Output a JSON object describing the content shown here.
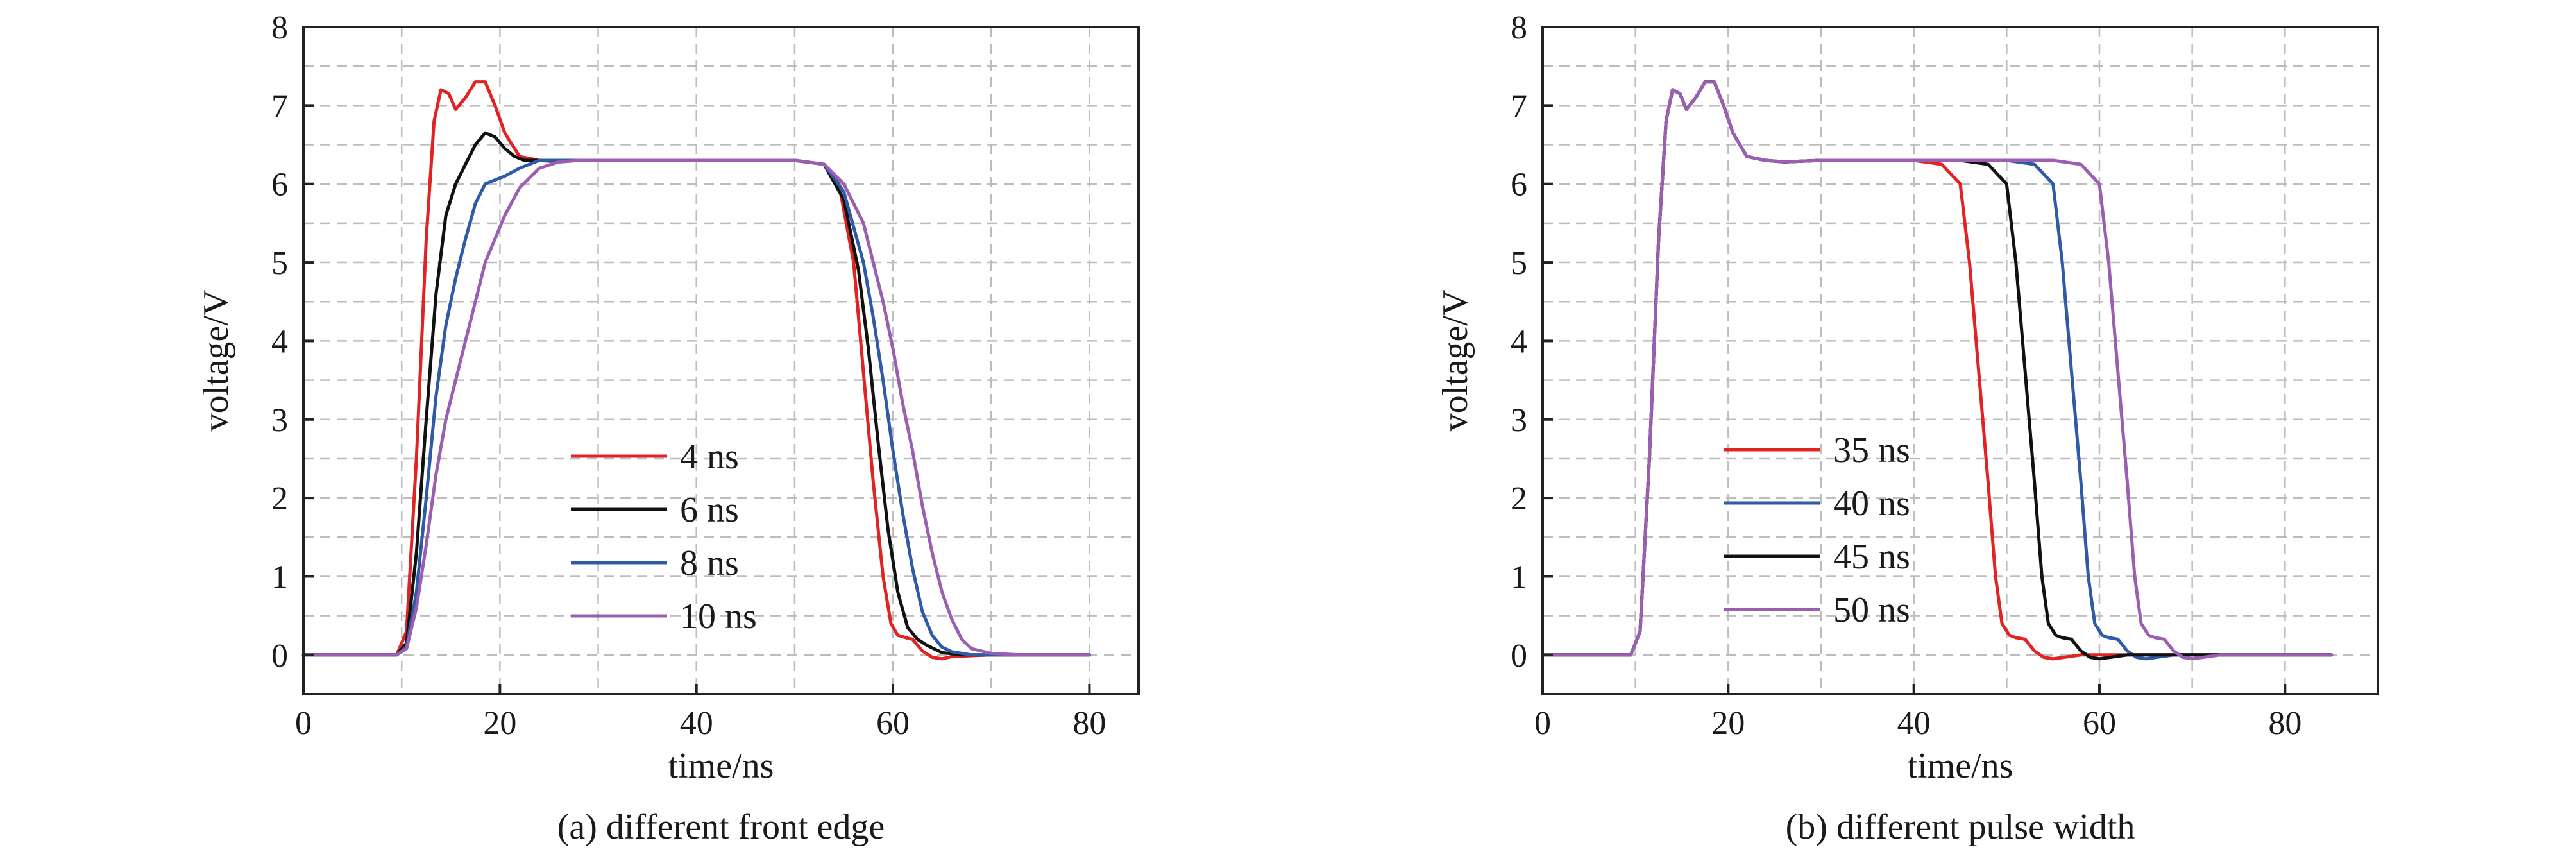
{
  "colors": {
    "red": "#e02424",
    "black": "#111111",
    "blue": "#2f5aa8",
    "purple": "#9a5fb0"
  },
  "chart_data": [
    {
      "type": "line",
      "title": "",
      "caption": "(a) different front edge",
      "xlabel": "time/ns",
      "ylabel": "voltage/V",
      "xlim": [
        0,
        85
      ],
      "ylim": [
        -0.5,
        8
      ],
      "xticks": [
        "0",
        "20",
        "40",
        "60",
        "80"
      ],
      "yticks": [
        "0",
        "1",
        "2",
        "3",
        "4",
        "5",
        "6",
        "7",
        "8"
      ],
      "grid": true,
      "legend_position": "center",
      "series": [
        {
          "name": "4 ns",
          "color": "#e02424",
          "x": [
            0,
            9.5,
            10.5,
            11.5,
            12.5,
            13.3,
            14,
            14.8,
            15.5,
            16.5,
            17.5,
            18.5,
            19.5,
            20.5,
            22,
            24,
            26,
            28,
            30,
            40,
            50,
            53,
            54.5,
            56,
            57,
            58,
            59,
            59.8,
            60.5,
            61.3,
            62,
            63,
            64,
            65,
            66,
            70,
            80
          ],
          "y": [
            0,
            0,
            0.3,
            2.5,
            5.3,
            6.8,
            7.2,
            7.15,
            6.95,
            7.1,
            7.3,
            7.3,
            7.0,
            6.65,
            6.35,
            6.3,
            6.28,
            6.3,
            6.3,
            6.3,
            6.3,
            6.25,
            6.0,
            5.0,
            3.6,
            2.2,
            1.0,
            0.4,
            0.25,
            0.22,
            0.2,
            0.05,
            -0.03,
            -0.05,
            -0.02,
            0,
            0
          ]
        },
        {
          "name": "6 ns",
          "color": "#111111",
          "x": [
            0,
            9.5,
            10.5,
            11.5,
            12.5,
            13.5,
            14.5,
            15.5,
            16.5,
            17.5,
            18.5,
            19.5,
            20.5,
            21.5,
            22.5,
            24,
            26,
            28,
            30,
            40,
            50,
            53,
            55,
            56.5,
            57.5,
            58.5,
            59.5,
            60.5,
            61.5,
            62.5,
            63.5,
            65,
            67,
            70,
            80
          ],
          "y": [
            0,
            0,
            0.15,
            1.3,
            3.0,
            4.6,
            5.6,
            6.0,
            6.25,
            6.5,
            6.65,
            6.6,
            6.45,
            6.35,
            6.3,
            6.3,
            6.3,
            6.3,
            6.3,
            6.3,
            6.3,
            6.25,
            5.8,
            4.9,
            3.9,
            2.7,
            1.6,
            0.8,
            0.35,
            0.2,
            0.12,
            0.03,
            0,
            0,
            0
          ]
        },
        {
          "name": "8 ns",
          "color": "#2f5aa8",
          "x": [
            0,
            9.5,
            10.5,
            11.5,
            12.5,
            13.5,
            14.5,
            15.5,
            16.5,
            17.5,
            18.5,
            19.5,
            20.5,
            22,
            24,
            26,
            28,
            30,
            40,
            50,
            53,
            55,
            57,
            58,
            59,
            60,
            61,
            62,
            63,
            64,
            65,
            66,
            68,
            70,
            80
          ],
          "y": [
            0,
            0,
            0.1,
            0.8,
            2.0,
            3.3,
            4.2,
            4.8,
            5.3,
            5.75,
            6.0,
            6.05,
            6.1,
            6.2,
            6.3,
            6.3,
            6.3,
            6.3,
            6.3,
            6.3,
            6.25,
            5.9,
            5.0,
            4.3,
            3.5,
            2.6,
            1.8,
            1.1,
            0.55,
            0.25,
            0.1,
            0.04,
            0,
            0,
            0
          ]
        },
        {
          "name": "10 ns",
          "color": "#9a5fb0",
          "x": [
            0,
            9.5,
            10.5,
            11.5,
            12.5,
            13.5,
            14.5,
            15.5,
            16.5,
            17.5,
            18.5,
            19.5,
            20.5,
            22,
            24,
            26,
            28,
            30,
            40,
            50,
            53,
            55,
            57,
            58,
            59,
            60,
            61,
            62,
            63,
            64,
            65,
            66,
            67,
            68,
            70,
            73,
            80
          ],
          "y": [
            0,
            0,
            0.08,
            0.6,
            1.4,
            2.3,
            3.0,
            3.5,
            4.0,
            4.5,
            5.0,
            5.3,
            5.6,
            5.95,
            6.2,
            6.28,
            6.3,
            6.3,
            6.3,
            6.3,
            6.25,
            6.0,
            5.5,
            5.0,
            4.5,
            3.9,
            3.2,
            2.6,
            1.9,
            1.3,
            0.8,
            0.45,
            0.2,
            0.08,
            0.02,
            0,
            0
          ]
        }
      ]
    },
    {
      "type": "line",
      "title": "",
      "caption": "(b) different pulse width",
      "xlabel": "time/ns",
      "ylabel": "voltage/V",
      "xlim": [
        0,
        90
      ],
      "ylim": [
        -0.5,
        8
      ],
      "xticks": [
        "0",
        "20",
        "40",
        "60",
        "80"
      ],
      "yticks": [
        "0",
        "1",
        "2",
        "3",
        "4",
        "5",
        "6",
        "7",
        "8"
      ],
      "grid": true,
      "legend_position": "center-left",
      "series": [
        {
          "name": "35 ns",
          "color": "#e02424",
          "x": [
            0,
            9.5,
            10.5,
            11.5,
            12.5,
            13.3,
            14,
            14.8,
            15.5,
            16.5,
            17.5,
            18.5,
            19.5,
            20.5,
            22,
            24,
            26,
            30,
            35,
            40,
            43,
            45,
            46,
            47,
            48,
            48.8,
            49.5,
            50.3,
            51,
            52,
            53,
            54,
            55,
            58,
            70,
            85
          ],
          "y": [
            0,
            0,
            0.3,
            2.5,
            5.3,
            6.8,
            7.2,
            7.15,
            6.95,
            7.1,
            7.3,
            7.3,
            7.0,
            6.65,
            6.35,
            6.3,
            6.28,
            6.3,
            6.3,
            6.3,
            6.25,
            6.0,
            5.0,
            3.6,
            2.2,
            1.0,
            0.4,
            0.25,
            0.22,
            0.2,
            0.05,
            -0.03,
            -0.05,
            0,
            0,
            0
          ]
        },
        {
          "name": "40 ns",
          "color": "#2f5aa8",
          "x": [
            0,
            9.5,
            10.5,
            11.5,
            12.5,
            13.3,
            14,
            14.8,
            15.5,
            16.5,
            17.5,
            18.5,
            19.5,
            20.5,
            22,
            24,
            26,
            30,
            40,
            50,
            53,
            55,
            56,
            57,
            58,
            58.8,
            59.5,
            60.3,
            61,
            62,
            63,
            64,
            65,
            68,
            80,
            85
          ],
          "y": [
            0,
            0,
            0.3,
            2.5,
            5.3,
            6.8,
            7.2,
            7.15,
            6.95,
            7.1,
            7.3,
            7.3,
            7.0,
            6.65,
            6.35,
            6.3,
            6.28,
            6.3,
            6.3,
            6.3,
            6.25,
            6.0,
            5.0,
            3.6,
            2.2,
            1.0,
            0.4,
            0.25,
            0.22,
            0.2,
            0.05,
            -0.03,
            -0.05,
            0,
            0,
            0
          ]
        },
        {
          "name": "45 ns",
          "color": "#111111",
          "x": [
            0,
            9.5,
            10.5,
            11.5,
            12.5,
            13.3,
            14,
            14.8,
            15.5,
            16.5,
            17.5,
            18.5,
            19.5,
            20.5,
            22,
            24,
            26,
            30,
            40,
            45,
            48,
            50,
            51,
            52,
            53,
            53.8,
            54.5,
            55.3,
            56,
            57,
            58,
            59,
            60,
            63,
            75,
            85
          ],
          "y": [
            0,
            0,
            0.3,
            2.5,
            5.3,
            6.8,
            7.2,
            7.15,
            6.95,
            7.1,
            7.3,
            7.3,
            7.0,
            6.65,
            6.35,
            6.3,
            6.28,
            6.3,
            6.3,
            6.3,
            6.25,
            6.0,
            5.0,
            3.6,
            2.2,
            1.0,
            0.4,
            0.25,
            0.22,
            0.2,
            0.05,
            -0.03,
            -0.05,
            0,
            0,
            0
          ]
        },
        {
          "name": "50 ns",
          "color": "#9a5fb0",
          "x": [
            0,
            9.5,
            10.5,
            11.5,
            12.5,
            13.3,
            14,
            14.8,
            15.5,
            16.5,
            17.5,
            18.5,
            19.5,
            20.5,
            22,
            24,
            26,
            30,
            40,
            55,
            58,
            60,
            61,
            62,
            63,
            63.8,
            64.5,
            65.3,
            66,
            67,
            68,
            69,
            70,
            73,
            80,
            85
          ],
          "y": [
            0,
            0,
            0.3,
            2.5,
            5.3,
            6.8,
            7.2,
            7.15,
            6.95,
            7.1,
            7.3,
            7.3,
            7.0,
            6.65,
            6.35,
            6.3,
            6.28,
            6.3,
            6.3,
            6.3,
            6.25,
            6.0,
            5.0,
            3.6,
            2.2,
            1.0,
            0.4,
            0.25,
            0.22,
            0.2,
            0.05,
            -0.03,
            -0.05,
            0,
            0,
            0
          ]
        }
      ]
    }
  ]
}
